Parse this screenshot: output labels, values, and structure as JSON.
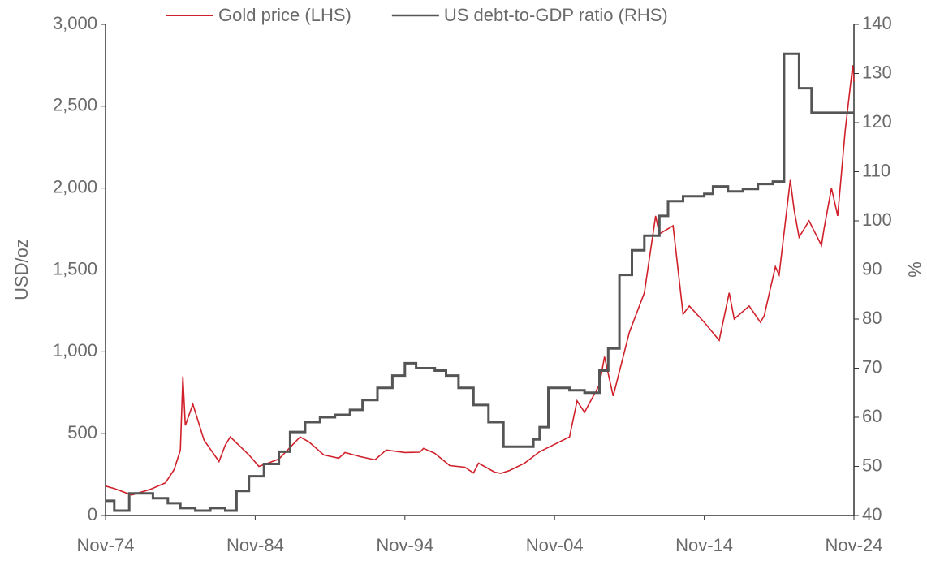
{
  "chart_data": {
    "type": "line",
    "y_label": "USD/oz",
    "y2_label": "%",
    "xlim": [
      "1974-11",
      "2024-11"
    ],
    "xticks": [
      {
        "value": "1974-11",
        "label": "Nov-74"
      },
      {
        "value": "1984-11",
        "label": "Nov-84"
      },
      {
        "value": "1994-11",
        "label": "Nov-94"
      },
      {
        "value": "2004-11",
        "label": "Nov-04"
      },
      {
        "value": "2014-11",
        "label": "Nov-14"
      },
      {
        "value": "2024-11",
        "label": "Nov-24"
      }
    ],
    "ylim": [
      0,
      3000
    ],
    "yticks": [
      0,
      500,
      {
        "value": 1000,
        "label": "1,000"
      },
      {
        "value": 1500,
        "label": "1,500"
      },
      {
        "value": 2000,
        "label": "2,000"
      },
      {
        "value": 2500,
        "label": "2,500"
      },
      {
        "value": 3000,
        "label": "3,000"
      }
    ],
    "y2lim": [
      40,
      140
    ],
    "y2ticks": [
      40,
      50,
      60,
      70,
      80,
      90,
      100,
      110,
      120,
      130,
      140
    ],
    "legend": "top",
    "series": [
      {
        "name": "Gold price (LHS)",
        "color": "#d0202a",
        "x": [
          "1974-11",
          "1975-06",
          "1976-08",
          "1977-11",
          "1978-11",
          "1979-06",
          "1979-11",
          "1980-01",
          "1980-03",
          "1980-09",
          "1981-06",
          "1982-06",
          "1982-11",
          "1983-03",
          "1984-06",
          "1985-02",
          "1985-11",
          "1986-06",
          "1987-11",
          "1988-06",
          "1989-06",
          "1990-06",
          "1990-11",
          "1991-11",
          "1992-11",
          "1993-08",
          "1994-11",
          "1995-11",
          "1996-02",
          "1996-11",
          "1997-11",
          "1998-11",
          "1999-06",
          "1999-10",
          "2000-11",
          "2001-04",
          "2001-11",
          "2002-11",
          "2003-11",
          "2004-11",
          "2005-11",
          "2006-05",
          "2006-11",
          "2007-11",
          "2008-03",
          "2008-10",
          "2009-11",
          "2010-11",
          "2011-08",
          "2011-11",
          "2012-10",
          "2013-06",
          "2013-11",
          "2014-11",
          "2015-11",
          "2016-07",
          "2016-11",
          "2017-11",
          "2018-08",
          "2018-11",
          "2019-08",
          "2019-11",
          "2020-08",
          "2020-11",
          "2021-03",
          "2021-11",
          "2022-09",
          "2022-11",
          "2023-05",
          "2023-10",
          "2024-04",
          "2024-10",
          "2024-11"
        ],
        "values": [
          180,
          165,
          125,
          160,
          200,
          280,
          400,
          850,
          550,
          680,
          460,
          330,
          430,
          480,
          370,
          300,
          325,
          345,
          480,
          450,
          370,
          350,
          385,
          360,
          340,
          400,
          385,
          387,
          410,
          380,
          305,
          295,
          260,
          320,
          265,
          258,
          275,
          320,
          390,
          435,
          480,
          700,
          630,
          800,
          970,
          730,
          1120,
          1360,
          1830,
          1720,
          1770,
          1230,
          1280,
          1180,
          1070,
          1360,
          1200,
          1280,
          1180,
          1220,
          1520,
          1470,
          2050,
          1870,
          1700,
          1800,
          1650,
          1750,
          2000,
          1830,
          2350,
          2750,
          2650
        ]
      },
      {
        "name": "US debt-to-GDP ratio (RHS)",
        "color": "#555555",
        "axis": "y2",
        "step": "post",
        "x": [
          "1974-11",
          "1975-06",
          "1976-06",
          "1978-01",
          "1979-01",
          "1979-11",
          "1980-11",
          "1981-11",
          "1982-11",
          "1983-08",
          "1984-06",
          "1985-06",
          "1986-06",
          "1987-03",
          "1988-03",
          "1989-03",
          "1990-03",
          "1991-03",
          "1992-01",
          "1993-01",
          "1994-01",
          "1994-11",
          "1995-08",
          "1996-11",
          "1997-08",
          "1998-06",
          "1999-06",
          "2000-06",
          "2001-06",
          "2002-11",
          "2003-06",
          "2003-11",
          "2004-06",
          "2005-11",
          "2006-11",
          "2007-11",
          "2008-06",
          "2009-03",
          "2010-01",
          "2010-11",
          "2011-11",
          "2012-06",
          "2013-06",
          "2014-11",
          "2015-06",
          "2016-06",
          "2017-06",
          "2018-06",
          "2019-06",
          "2020-03",
          "2021-03",
          "2022-01",
          "2024-11"
        ],
        "values": [
          43,
          41,
          44.5,
          43.5,
          42.5,
          41.5,
          41,
          41.5,
          41,
          45,
          48,
          50.5,
          53,
          57,
          59,
          60,
          60.5,
          61.5,
          63.5,
          66,
          68.5,
          71,
          70,
          69.5,
          68.5,
          66,
          62.5,
          59,
          54,
          54,
          55.5,
          58,
          66,
          65.5,
          65,
          69.5,
          74,
          89,
          94,
          97,
          101,
          104,
          105,
          105.5,
          107,
          106,
          106.5,
          107.5,
          108,
          134,
          127,
          122,
          122
        ]
      }
    ]
  }
}
